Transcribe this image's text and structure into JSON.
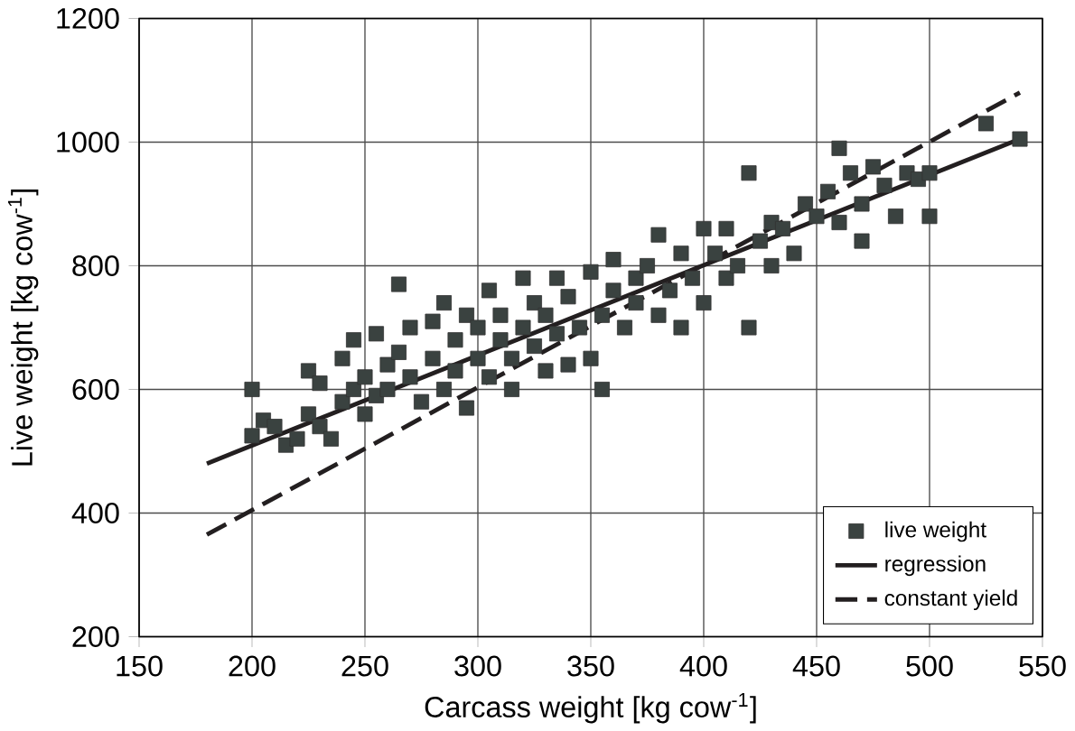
{
  "chart_data": {
    "type": "scatter",
    "xlabel": "Carcass weight [kg cow$^{-1}$]",
    "ylabel": "Live weight [kg cow$^{-1}$]",
    "xlim": [
      150,
      550
    ],
    "ylim": [
      200,
      1200
    ],
    "xticks": [
      150,
      200,
      250,
      300,
      350,
      400,
      450,
      500,
      550
    ],
    "yticks": [
      200,
      400,
      600,
      800,
      1000,
      1200
    ],
    "grid": true,
    "legend": "bottom right",
    "series": [
      {
        "name": "live weight",
        "marker": "square",
        "color": "#3a4240",
        "x": [
          200,
          200,
          205,
          210,
          215,
          220,
          225,
          225,
          230,
          230,
          235,
          240,
          240,
          245,
          245,
          250,
          250,
          255,
          255,
          260,
          260,
          265,
          265,
          270,
          270,
          275,
          280,
          280,
          285,
          285,
          290,
          290,
          295,
          295,
          300,
          300,
          305,
          305,
          310,
          310,
          315,
          315,
          320,
          320,
          325,
          325,
          330,
          330,
          335,
          335,
          340,
          340,
          345,
          350,
          350,
          355,
          355,
          360,
          360,
          365,
          370,
          370,
          375,
          380,
          380,
          385,
          390,
          390,
          395,
          400,
          400,
          405,
          410,
          410,
          415,
          420,
          420,
          425,
          430,
          430,
          435,
          440,
          445,
          450,
          455,
          460,
          460,
          465,
          470,
          470,
          475,
          480,
          485,
          490,
          495,
          500,
          500,
          525,
          540
        ],
        "values": [
          600,
          525,
          550,
          540,
          510,
          520,
          560,
          630,
          540,
          610,
          520,
          580,
          650,
          600,
          680,
          560,
          620,
          690,
          590,
          640,
          600,
          770,
          660,
          620,
          700,
          580,
          650,
          710,
          600,
          740,
          680,
          630,
          720,
          570,
          650,
          700,
          760,
          620,
          680,
          720,
          600,
          650,
          780,
          700,
          670,
          740,
          630,
          720,
          690,
          780,
          640,
          750,
          700,
          790,
          650,
          720,
          600,
          760,
          810,
          700,
          740,
          780,
          800,
          720,
          850,
          760,
          820,
          700,
          780,
          860,
          740,
          820,
          780,
          860,
          800,
          950,
          700,
          840,
          870,
          800,
          860,
          820,
          900,
          880,
          920,
          990,
          870,
          950,
          900,
          840,
          960,
          930,
          880,
          950,
          940,
          880,
          950,
          1030,
          1005
        ]
      },
      {
        "name": "regression",
        "type": "line",
        "line_style": "solid",
        "color": "#231f20",
        "x": [
          180,
          540
        ],
        "values": [
          480,
          1005
        ]
      },
      {
        "name": "constant yield",
        "type": "line",
        "line_style": "dashed",
        "color": "#231f20",
        "x": [
          180,
          540
        ],
        "values": [
          365,
          1080
        ]
      }
    ]
  }
}
